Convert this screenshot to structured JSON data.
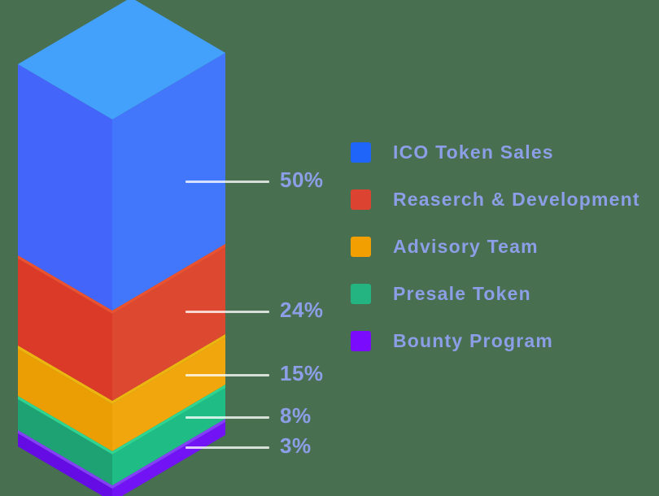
{
  "background_color": "#476F50",
  "text_color": "#8C9EE6",
  "callout_line_color": "rgba(255,255,255,0.78)",
  "chart_data": {
    "type": "bar",
    "subtype": "isometric-3d-stacked-column",
    "title": "",
    "unit": "%",
    "total_percent": 100,
    "legend_position": "right",
    "segments": [
      {
        "label": "ICO Token Sales",
        "percent": 50,
        "percent_label": "50%",
        "color": "#2065FA",
        "face_top": "#43A0FB",
        "face_left": "#4465FA",
        "face_right": "#4277FB"
      },
      {
        "label": "Reaserch & Development",
        "percent": 24,
        "percent_label": "24%",
        "color": "#DC4431",
        "face_top": "#EC5130",
        "face_left": "#DB3A29",
        "face_right": "#DD4830"
      },
      {
        "label": "Advisory Team",
        "percent": 15,
        "percent_label": "15%",
        "color": "#F2A001",
        "face_top": "#EFB50F",
        "face_left": "#EB9E03",
        "face_right": "#F0A60C"
      },
      {
        "label": "Presale Token",
        "percent": 8,
        "percent_label": "8%",
        "color": "#23B481",
        "face_top": "#2DD492",
        "face_left": "#1EA274",
        "face_right": "#1FBD85"
      },
      {
        "label": "Bounty Program",
        "percent": 3,
        "percent_label": "3%",
        "color": "#7B0BFC",
        "face_top": "#8440F8",
        "face_left": "#640CE3",
        "face_right": "#7113F4"
      }
    ]
  }
}
